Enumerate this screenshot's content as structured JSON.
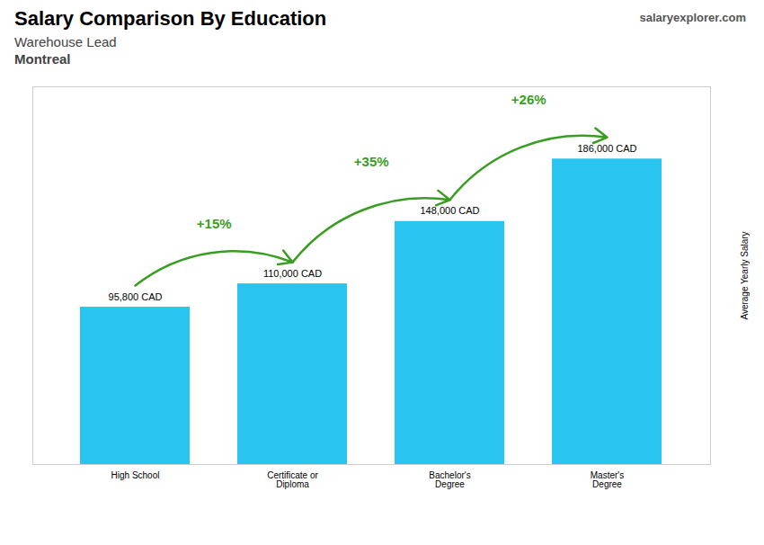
{
  "chart_data": {
    "type": "bar",
    "title": "Salary Comparison By Education",
    "subtitle": [
      "Warehouse Lead",
      "Montreal"
    ],
    "y_label": "Average Yearly Salary",
    "categories": [
      "High School",
      "Certificate or\nDiploma",
      "Bachelor's\nDegree",
      "Master's\nDegree"
    ],
    "values": [
      95800,
      110000,
      148000,
      186000
    ],
    "value_labels": [
      "95,800 CAD",
      "110,000 CAD",
      "148,000 CAD",
      "186,000 CAD"
    ],
    "data_labels": true,
    "color": "#29c5f0",
    "ylim": [
      0,
      230000
    ],
    "tick_labels": "x",
    "grid": false,
    "annotations": [
      {
        "text": "+15%",
        "from": "High School",
        "to": "Certificate or\nDiploma"
      },
      {
        "text": "+35%",
        "from": "Certificate or\nDiploma",
        "to": "Bachelor's\nDegree"
      },
      {
        "text": "+26%",
        "from": "Bachelor's\nDegree",
        "to": "Master's\nDegree"
      },
      {
        "text": "salaryexplorer.com"
      }
    ]
  }
}
